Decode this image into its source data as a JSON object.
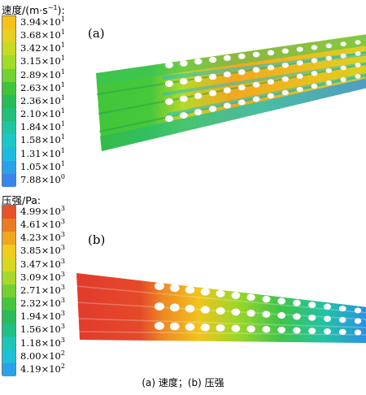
{
  "panel_a": {
    "letter": "(a)",
    "legend_title_base": "速度/(m·s",
    "legend_title_exp": "−1",
    "legend_title_end": "):",
    "colors": [
      "#f4c21b",
      "#e6d020",
      "#c9da22",
      "#9fdc26",
      "#6fd22e",
      "#3fc53c",
      "#27bd55",
      "#1fc07a",
      "#1ec6a2",
      "#1cc8c6",
      "#1ebbe0",
      "#2aa2ea",
      "#3a84ec"
    ],
    "labels": [
      {
        "m": "3.94",
        "e": "1"
      },
      {
        "m": "3.68",
        "e": "1"
      },
      {
        "m": "3.42",
        "e": "1"
      },
      {
        "m": "3.15",
        "e": "1"
      },
      {
        "m": "2.89",
        "e": "1"
      },
      {
        "m": "2.63",
        "e": "1"
      },
      {
        "m": "2.36",
        "e": "1"
      },
      {
        "m": "2.10",
        "e": "1"
      },
      {
        "m": "1.84",
        "e": "1"
      },
      {
        "m": "1.58",
        "e": "1"
      },
      {
        "m": "1.31",
        "e": "1"
      },
      {
        "m": "1.05",
        "e": "1"
      },
      {
        "m": "7.88",
        "e": "0"
      }
    ]
  },
  "panel_b": {
    "letter": "(b)",
    "legend_title": "压强/Pa:",
    "colors": [
      "#e8522a",
      "#ec7a22",
      "#f0a61e",
      "#f2cb1c",
      "#d6d81f",
      "#a8d926",
      "#74d02e",
      "#45c43c",
      "#2abc58",
      "#1fc083",
      "#1dc6b4",
      "#1dbfda",
      "#2aa2ea"
    ],
    "labels": [
      {
        "m": "4.99",
        "e": "3"
      },
      {
        "m": "4.61",
        "e": "3"
      },
      {
        "m": "4.23",
        "e": "3"
      },
      {
        "m": "3.85",
        "e": "3"
      },
      {
        "m": "3.47",
        "e": "3"
      },
      {
        "m": "3.09",
        "e": "3"
      },
      {
        "m": "2.71",
        "e": "3"
      },
      {
        "m": "2.32",
        "e": "3"
      },
      {
        "m": "1.94",
        "e": "3"
      },
      {
        "m": "1.56",
        "e": "3"
      },
      {
        "m": "1.18",
        "e": "3"
      },
      {
        "m": "8.00",
        "e": "2"
      },
      {
        "m": "4.19",
        "e": "2"
      }
    ]
  },
  "caption": "(a)  速度；(b)  压强"
}
